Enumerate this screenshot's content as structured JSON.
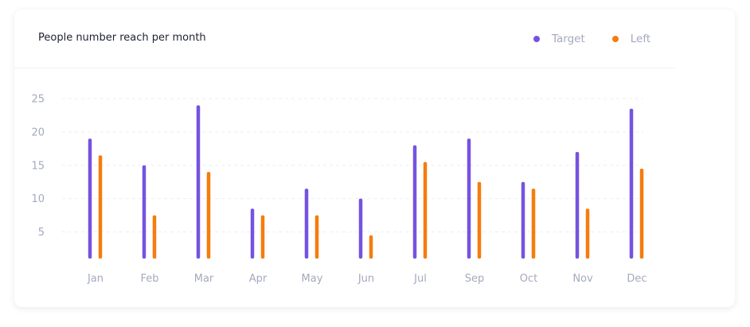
{
  "card": {
    "title": "People number reach per month"
  },
  "legend": [
    {
      "name": "Target",
      "color": "#7553e0"
    },
    {
      "name": "Left",
      "color": "#f57c0e"
    }
  ],
  "chart_data": {
    "type": "bar",
    "title": "People number reach per month",
    "xlabel": "",
    "ylabel": "",
    "categories": [
      "Jan",
      "Feb",
      "Mar",
      "Apr",
      "May",
      "Jun",
      "Jul",
      "Sep",
      "Oct",
      "Nov",
      "Dec"
    ],
    "series": [
      {
        "name": "Target",
        "color": "#7553e0",
        "values": [
          19,
          15,
          24,
          8.5,
          11.5,
          10,
          18,
          19,
          12.5,
          17,
          23.5
        ]
      },
      {
        "name": "Left",
        "color": "#f57c0e",
        "values": [
          16.5,
          7.5,
          14,
          7.5,
          7.5,
          4.5,
          15.5,
          12.5,
          11.5,
          8.5,
          14.5
        ]
      }
    ],
    "yticks": [
      5,
      10,
      15,
      20,
      25
    ],
    "ylim": [
      1,
      25
    ],
    "grid": true,
    "legend_position": "top-right"
  }
}
